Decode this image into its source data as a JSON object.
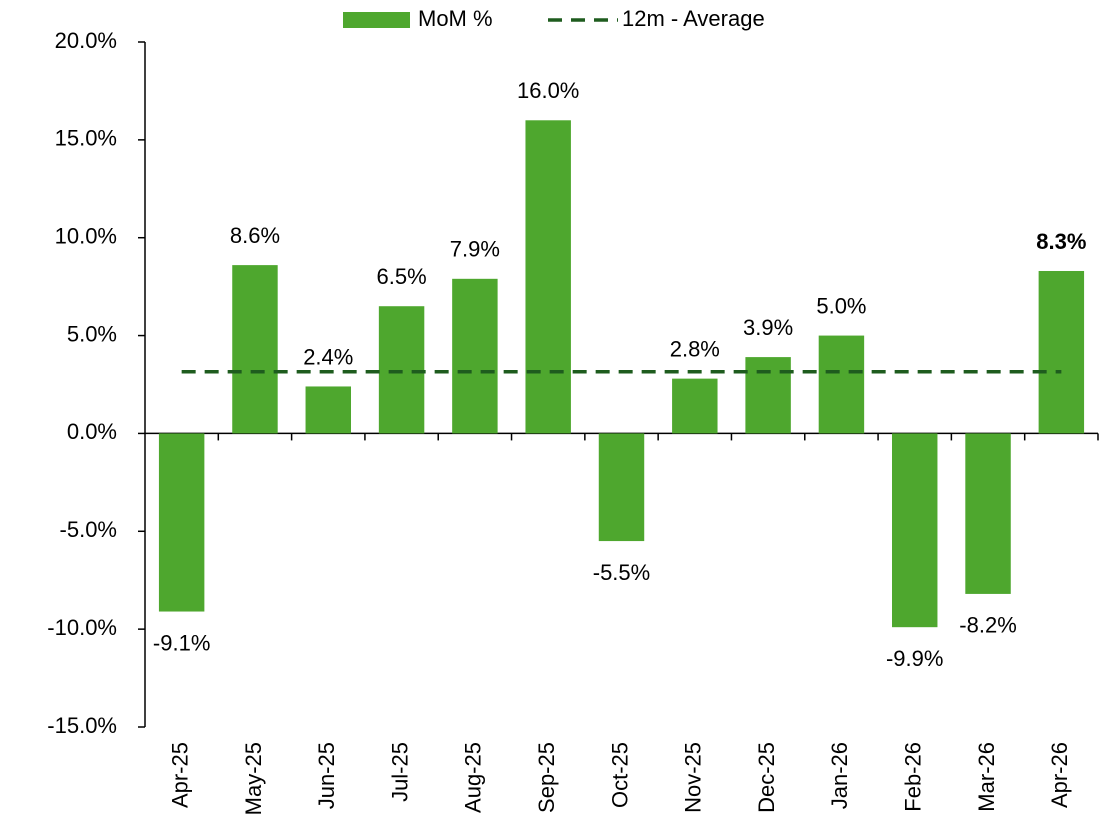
{
  "chart_data": {
    "type": "bar",
    "categories": [
      "Apr-25",
      "May-25",
      "Jun-25",
      "Jul-25",
      "Aug-25",
      "Sep-25",
      "Oct-25",
      "Nov-25",
      "Dec-25",
      "Jan-26",
      "Feb-26",
      "Mar-26",
      "Apr-26"
    ],
    "series": [
      {
        "name": "MoM %",
        "type": "bar",
        "color": "#4ea72e",
        "values": [
          -9.1,
          8.6,
          2.4,
          6.5,
          7.9,
          16.0,
          -5.5,
          2.8,
          3.9,
          5.0,
          -9.9,
          -8.2,
          8.3
        ],
        "value_labels": [
          "-9.1%",
          "8.6%",
          "2.4%",
          "6.5%",
          "7.9%",
          "16.0%",
          "-5.5%",
          "2.8%",
          "3.9%",
          "5.0%",
          "-9.9%",
          "-8.2%",
          "8.3%"
        ]
      },
      {
        "name": "12m - Average",
        "type": "line",
        "color": "#1e5c1e",
        "dashed": true,
        "values": [
          3.15,
          3.15,
          3.15,
          3.15,
          3.15,
          3.15,
          3.15,
          3.15,
          3.15,
          3.15,
          3.15,
          3.15,
          3.15
        ]
      }
    ],
    "ylim": [
      -15,
      20
    ],
    "yticks": [
      {
        "value": -15,
        "label": "-15.0%"
      },
      {
        "value": -10,
        "label": "-10.0%"
      },
      {
        "value": -5,
        "label": "-5.0%"
      },
      {
        "value": 0,
        "label": "0.0%"
      },
      {
        "value": 5,
        "label": "5.0%"
      },
      {
        "value": 10,
        "label": "10.0%"
      },
      {
        "value": 15,
        "label": "15.0%"
      },
      {
        "value": 20,
        "label": "20.0%"
      }
    ],
    "grid": false,
    "legend": "top"
  }
}
